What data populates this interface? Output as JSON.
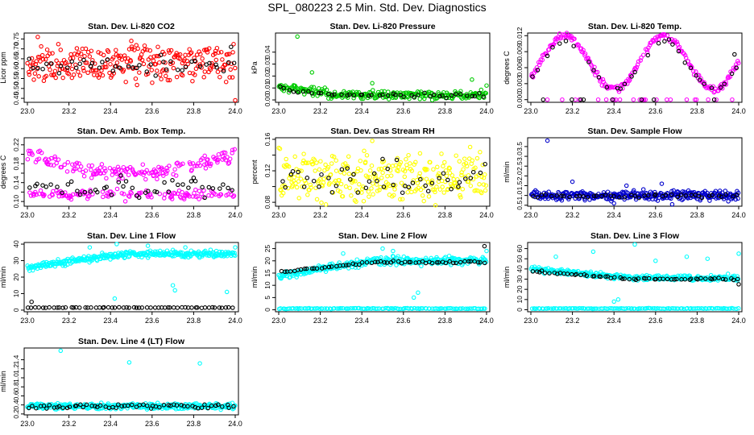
{
  "page_title": "SPL_080223  2.5 Min. Std. Dev. Diagnostics",
  "colors": {
    "axis": "#000000",
    "black_series": "#000000"
  },
  "chart_data": [
    {
      "type": "scatter",
      "title": "Stan. Dev. Li-820 CO2",
      "xlabel": "",
      "ylabel": "Licor ppm",
      "xlim": [
        23.0,
        24.0
      ],
      "ylim": [
        0.43,
        0.78
      ],
      "xticks": [
        23.0,
        23.2,
        23.4,
        23.6,
        23.8,
        24.0
      ],
      "xtick_labels": [
        "23.0",
        "23.2",
        "23.4",
        "23.6",
        "23.8",
        "24.0"
      ],
      "yticks": [
        0.45,
        0.5,
        0.55,
        0.6,
        0.65,
        0.7,
        0.75
      ],
      "ytick_labels": [
        "0.45",
        "0.50",
        "0.55",
        "0.60",
        "0.65",
        "0.70",
        "0.75"
      ],
      "series": [
        {
          "name": "colored",
          "color": "#ff0000",
          "pattern": "band",
          "lo": 0.55,
          "hi": 0.7,
          "sd": 0.035,
          "n": 260,
          "outliers": [
            [
              23.05,
              0.76
            ],
            [
              24.0,
              0.44
            ],
            [
              23.5,
              0.74
            ]
          ]
        },
        {
          "name": "black",
          "color": "#000000",
          "pattern": "band",
          "lo": 0.58,
          "hi": 0.65,
          "sd": 0.02,
          "n": 45,
          "outliers": [
            [
              23.98,
              0.71
            ]
          ]
        }
      ]
    },
    {
      "type": "scatter",
      "title": "Stan. Dev. Li-820 Pressure",
      "xlabel": "",
      "ylabel": "kPa",
      "xlim": [
        23.0,
        24.0
      ],
      "ylim": [
        -0.002,
        0.056
      ],
      "xticks": [
        23.0,
        23.2,
        23.4,
        23.6,
        23.8,
        24.0
      ],
      "xtick_labels": [
        "23.0",
        "23.2",
        "23.4",
        "23.6",
        "23.8",
        "24.0"
      ],
      "yticks": [
        0.0,
        0.01,
        0.02,
        0.03,
        0.04
      ],
      "ytick_labels": [
        "0.00",
        "0.01",
        "0.02",
        "0.03",
        "0.04"
      ],
      "series": [
        {
          "name": "colored",
          "color": "#00cc00",
          "pattern": "decay",
          "lo": 0.004,
          "hi": 0.011,
          "sd": 0.003,
          "n": 260,
          "outliers": [
            [
              23.09,
              0.053
            ],
            [
              23.16,
              0.023
            ],
            [
              23.93,
              0.017
            ],
            [
              24.0,
              0.012
            ],
            [
              23.45,
              0.014
            ]
          ]
        },
        {
          "name": "black",
          "color": "#000000",
          "pattern": "decay",
          "lo": 0.004,
          "hi": 0.009,
          "sd": 0.0015,
          "n": 45,
          "outliers": []
        }
      ]
    },
    {
      "type": "scatter",
      "title": "Stan. Dev. Li-820 Temp.",
      "xlabel": "",
      "ylabel": "degrees C",
      "xlim": [
        23.0,
        24.0
      ],
      "ylim": [
        -0.0005,
        0.0125
      ],
      "xticks": [
        23.0,
        23.2,
        23.4,
        23.6,
        23.8,
        24.0
      ],
      "xtick_labels": [
        "23.0",
        "23.2",
        "23.4",
        "23.6",
        "23.8",
        "24.0"
      ],
      "yticks": [
        0.0,
        0.003,
        0.006,
        0.009,
        0.012
      ],
      "ytick_labels": [
        "0.000",
        "0.003",
        "0.006",
        "0.009",
        "0.012"
      ],
      "series": [
        {
          "name": "colored",
          "color": "#ff00ff",
          "pattern": "wave",
          "lo": 0.002,
          "hi": 0.012,
          "sd": 0.0005,
          "n": 230,
          "outliers": []
        },
        {
          "name": "black",
          "color": "#000000",
          "pattern": "wave",
          "lo": 0.002,
          "hi": 0.011,
          "sd": 0.0004,
          "n": 40,
          "outliers": [
            [
              23.98,
              0.0085
            ]
          ]
        }
      ]
    },
    {
      "type": "scatter",
      "title": "Stan. Dev. Amb. Box Temp.",
      "xlabel": "",
      "ylabel": "degrees C",
      "xlim": [
        23.0,
        24.0
      ],
      "ylim": [
        0.09,
        0.235
      ],
      "xticks": [
        23.0,
        23.2,
        23.4,
        23.6,
        23.8,
        24.0
      ],
      "xtick_labels": [
        "23.0",
        "23.2",
        "23.4",
        "23.6",
        "23.8",
        "24.0"
      ],
      "yticks": [
        0.1,
        0.12,
        0.14,
        0.16,
        0.18,
        0.2,
        0.22
      ],
      "ytick_labels": [
        "0.10",
        "",
        "0.14",
        "",
        "0.18",
        "",
        "0.22"
      ],
      "series": [
        {
          "name": "colored",
          "color": "#ff00ff",
          "pattern": "twoband",
          "lo": 0.11,
          "hi": 0.22,
          "sd": 0.008,
          "n": 300,
          "outliers": []
        },
        {
          "name": "black",
          "color": "#000000",
          "pattern": "band",
          "lo": 0.11,
          "hi": 0.14,
          "sd": 0.008,
          "n": 45,
          "outliers": [
            [
              23.45,
              0.155
            ],
            [
              23.8,
              0.15
            ]
          ]
        }
      ]
    },
    {
      "type": "scatter",
      "title": "Stan. Dev. Gas Stream RH",
      "xlabel": "",
      "ylabel": "percent",
      "xlim": [
        23.0,
        24.0
      ],
      "ylim": [
        0.075,
        0.162
      ],
      "xticks": [
        23.0,
        23.2,
        23.4,
        23.6,
        23.8,
        24.0
      ],
      "xtick_labels": [
        "23.0",
        "23.2",
        "23.4",
        "23.6",
        "23.8",
        "24.0"
      ],
      "yticks": [
        0.08,
        0.1,
        0.12,
        0.14,
        0.16
      ],
      "ytick_labels": [
        "0.08",
        "",
        "0.12",
        "",
        "0.16"
      ],
      "series": [
        {
          "name": "colored",
          "color": "#ffff00",
          "pattern": "band",
          "lo": 0.09,
          "hi": 0.135,
          "sd": 0.012,
          "n": 300,
          "outliers": [
            [
              23.45,
              0.158
            ]
          ]
        },
        {
          "name": "black",
          "color": "#000000",
          "pattern": "band",
          "lo": 0.095,
          "hi": 0.125,
          "sd": 0.01,
          "n": 45,
          "outliers": [
            [
              23.5,
              0.135
            ]
          ]
        }
      ]
    },
    {
      "type": "scatter",
      "title": "Stan. Dev. Sample Flow",
      "xlabel": "",
      "ylabel": "ml/min",
      "xlim": [
        23.0,
        24.0
      ],
      "ylim": [
        0.45,
        3.95
      ],
      "xticks": [
        23.0,
        23.2,
        23.4,
        23.6,
        23.8,
        24.0
      ],
      "xtick_labels": [
        "23.0",
        "23.2",
        "23.4",
        "23.6",
        "23.8",
        "24.0"
      ],
      "yticks": [
        0.5,
        1.0,
        1.5,
        2.0,
        2.5,
        3.0,
        3.5
      ],
      "ytick_labels": [
        "0.5",
        "1.0",
        "1.5",
        "2.0",
        "2.5",
        "3.0",
        "3.5"
      ],
      "series": [
        {
          "name": "colored",
          "color": "#0000cc",
          "pattern": "band",
          "lo": 0.85,
          "hi": 1.15,
          "sd": 0.12,
          "n": 320,
          "outliers": [
            [
              23.08,
              3.8
            ],
            [
              23.2,
              1.7
            ],
            [
              23.46,
              1.5
            ],
            [
              23.63,
              1.6
            ],
            [
              23.68,
              0.55
            ],
            [
              23.4,
              0.6
            ],
            [
              23.95,
              0.7
            ]
          ]
        },
        {
          "name": "black",
          "color": "#000000",
          "pattern": "band",
          "lo": 0.9,
          "hi": 1.05,
          "sd": 0.05,
          "n": 45,
          "outliers": []
        }
      ]
    },
    {
      "type": "scatter",
      "title": "Stan. Dev. Line 1 Flow",
      "xlabel": "",
      "ylabel": "ml/min",
      "xlim": [
        23.0,
        24.0
      ],
      "ylim": [
        -1,
        41
      ],
      "xticks": [
        23.0,
        23.2,
        23.4,
        23.6,
        23.8,
        24.0
      ],
      "xtick_labels": [
        "23.0",
        "23.2",
        "23.4",
        "23.6",
        "23.8",
        "24.0"
      ],
      "yticks": [
        0,
        10,
        20,
        30,
        40
      ],
      "ytick_labels": [
        "0",
        "10",
        "20",
        "30",
        "40"
      ],
      "series": [
        {
          "name": "colored",
          "color": "#00ffff",
          "pattern": "rising",
          "lo": 26,
          "hi": 34,
          "sd": 1.6,
          "n": 320,
          "outliers": [
            [
              23.3,
              38
            ],
            [
              23.43,
              40
            ],
            [
              23.58,
              39
            ],
            [
              23.76,
              38
            ],
            [
              24.0,
              38
            ],
            [
              23.42,
              7
            ],
            [
              23.71,
              12
            ],
            [
              23.7,
              15
            ],
            [
              23.96,
              11
            ]
          ]
        },
        {
          "name": "black",
          "color": "#000000",
          "pattern": "flat",
          "lo": 1.5,
          "hi": 1.5,
          "sd": 0.15,
          "n": 60,
          "outliers": [
            [
              23.02,
              5
            ]
          ]
        }
      ]
    },
    {
      "type": "scatter",
      "title": "Stan. Dev. Line 2 Flow",
      "xlabel": "",
      "ylabel": "ml/min",
      "xlim": [
        23.0,
        24.0
      ],
      "ylim": [
        -0.8,
        27.5
      ],
      "xticks": [
        23.0,
        23.2,
        23.4,
        23.6,
        23.8,
        24.0
      ],
      "xtick_labels": [
        "23.0",
        "23.2",
        "23.4",
        "23.6",
        "23.8",
        "24.0"
      ],
      "yticks": [
        0,
        5,
        10,
        15,
        20,
        25
      ],
      "ytick_labels": [
        "0",
        "5",
        "10",
        "15",
        "20",
        "25"
      ],
      "series": [
        {
          "name": "colored",
          "color": "#00ffff",
          "pattern": "rising",
          "lo": 14,
          "hi": 20,
          "sd": 1.3,
          "n": 320,
          "outliers": [
            [
              23.5,
              25
            ],
            [
              23.55,
              24
            ],
            [
              23.82,
              22
            ],
            [
              24.0,
              24
            ],
            [
              23.65,
              5
            ],
            [
              23.67,
              7
            ],
            [
              23.31,
              23
            ]
          ]
        },
        {
          "name": "black",
          "color": "#000000",
          "pattern": "rising",
          "lo": 15.5,
          "hi": 19.5,
          "sd": 0.4,
          "n": 60,
          "outliers": [
            [
              23.99,
              26
            ]
          ]
        },
        {
          "name": "baseline",
          "color": "#00ffff",
          "pattern": "flat",
          "lo": 0.5,
          "hi": 0.5,
          "sd": 0.15,
          "n": 120,
          "outliers": []
        }
      ]
    },
    {
      "type": "scatter",
      "title": "Stan. Dev. Line 3 Flow",
      "xlabel": "",
      "ylabel": "ml/min",
      "xlim": [
        23.0,
        24.0
      ],
      "ylim": [
        -2,
        66
      ],
      "xticks": [
        23.0,
        23.2,
        23.4,
        23.6,
        23.8,
        24.0
      ],
      "xtick_labels": [
        "23.0",
        "23.2",
        "23.4",
        "23.6",
        "23.8",
        "24.0"
      ],
      "yticks": [
        0,
        10,
        20,
        30,
        40,
        50,
        60
      ],
      "ytick_labels": [
        "0",
        "10",
        "20",
        "30",
        "40",
        "50",
        "60"
      ],
      "series": [
        {
          "name": "colored",
          "color": "#00ffff",
          "pattern": "falling",
          "lo": 31,
          "hi": 40,
          "sd": 2.2,
          "n": 320,
          "outliers": [
            [
              23.3,
              57
            ],
            [
              23.5,
              64
            ],
            [
              23.6,
              48
            ],
            [
              23.75,
              52
            ],
            [
              23.85,
              50
            ],
            [
              24.0,
              55
            ],
            [
              23.4,
              8
            ],
            [
              23.42,
              10
            ],
            [
              23.12,
              52
            ]
          ]
        },
        {
          "name": "black",
          "color": "#000000",
          "pattern": "falling",
          "lo": 30,
          "hi": 38,
          "sd": 0.8,
          "n": 60,
          "outliers": [
            [
              24.0,
              25
            ]
          ]
        },
        {
          "name": "baseline",
          "color": "#00ffff",
          "pattern": "flat",
          "lo": 1.2,
          "hi": 1.2,
          "sd": 0.3,
          "n": 120,
          "outliers": []
        }
      ]
    },
    {
      "type": "scatter",
      "title": "Stan. Dev. Line 4 (LT) Flow",
      "xlabel": "",
      "ylabel": "ml/min",
      "xlim": [
        23.0,
        24.0
      ],
      "ylim": [
        0.18,
        1.66
      ],
      "xticks": [
        23.0,
        23.2,
        23.4,
        23.6,
        23.8,
        24.0
      ],
      "xtick_labels": [
        "23.0",
        "23.2",
        "23.4",
        "23.6",
        "23.8",
        "24.0"
      ],
      "yticks": [
        0.2,
        0.4,
        0.6,
        0.8,
        1.0,
        1.2,
        1.4
      ],
      "ytick_labels": [
        "0.2",
        "0.4",
        "0.6",
        "0.8",
        "1.0",
        "1.2",
        "1.4"
      ],
      "series": [
        {
          "name": "colored",
          "color": "#00ffff",
          "pattern": "band",
          "lo": 0.32,
          "hi": 0.42,
          "sd": 0.03,
          "n": 320,
          "outliers": [
            [
              23.16,
              1.6
            ],
            [
              23.49,
              1.34
            ],
            [
              23.83,
              1.32
            ]
          ]
        },
        {
          "name": "black",
          "color": "#000000",
          "pattern": "band",
          "lo": 0.33,
          "hi": 0.41,
          "sd": 0.02,
          "n": 60,
          "outliers": []
        }
      ]
    }
  ]
}
